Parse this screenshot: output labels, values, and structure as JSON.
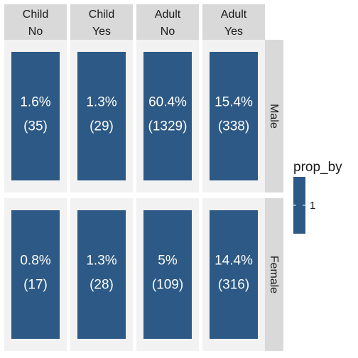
{
  "chart_data": {
    "type": "table",
    "columns": [
      {
        "top": "Child",
        "bottom": "No"
      },
      {
        "top": "Child",
        "bottom": "Yes"
      },
      {
        "top": "Adult",
        "bottom": "No"
      },
      {
        "top": "Adult",
        "bottom": "Yes"
      }
    ],
    "rows": [
      "Male",
      "Female"
    ],
    "cells": [
      [
        {
          "pct": "1.6%",
          "count": "(35)",
          "value": 1
        },
        {
          "pct": "1.3%",
          "count": "(29)",
          "value": 1
        },
        {
          "pct": "60.4%",
          "count": "(1329)",
          "value": 1
        },
        {
          "pct": "15.4%",
          "count": "(338)",
          "value": 1
        }
      ],
      [
        {
          "pct": "0.8%",
          "count": "(17)",
          "value": 1
        },
        {
          "pct": "1.3%",
          "count": "(28)",
          "value": 1
        },
        {
          "pct": "5%",
          "count": "(109)",
          "value": 1
        },
        {
          "pct": "14.4%",
          "count": "(316)",
          "value": 1
        }
      ]
    ],
    "legend": {
      "title": "prop_by",
      "labels": [
        "1"
      ],
      "color": "#2c5985",
      "placement": "right"
    },
    "colors": {
      "bar": "#2c5985",
      "panel": "#f2f2f2",
      "strip": "#d9d9d9"
    },
    "grid": false
  }
}
